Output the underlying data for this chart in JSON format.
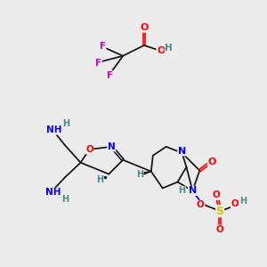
{
  "bg_color": "#ebebeb",
  "colors": {
    "O": "#ff0000",
    "N": "#0000ff",
    "F": "#cc00cc",
    "S": "#cccc00",
    "H": "#4a8a8a",
    "C": "#1a1a1a"
  },
  "figsize": [
    3.0,
    3.0
  ],
  "dpi": 100
}
